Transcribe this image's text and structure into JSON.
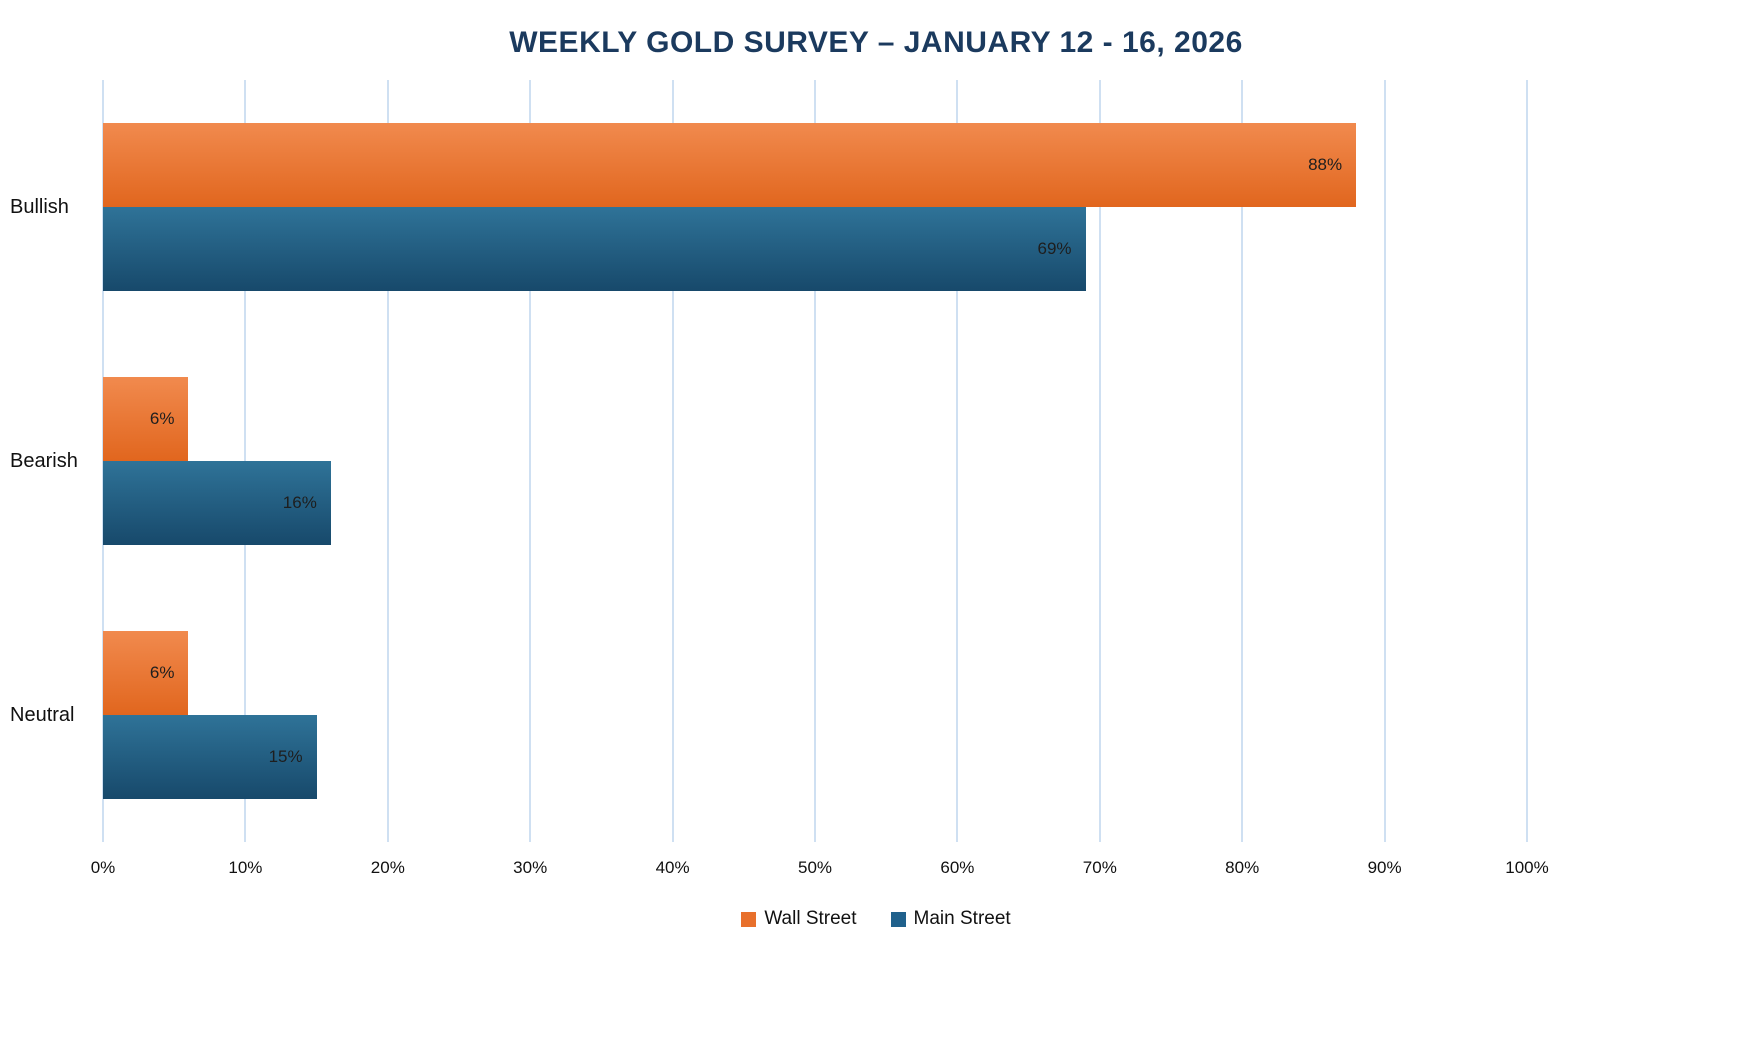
{
  "title": "WEEKLY GOLD SURVEY – JANUARY 12 - 16, 2026",
  "chart_data": {
    "type": "bar",
    "orientation": "horizontal",
    "title": "WEEKLY GOLD SURVEY – JANUARY 12 - 16, 2026",
    "title_color": "#1b3a5e",
    "categories": [
      "Bullish",
      "Bearish",
      "Neutral"
    ],
    "series": [
      {
        "name": "Wall Street",
        "values": [
          88,
          6,
          6
        ],
        "color": "#e8702c",
        "color_top": "#f18a4e",
        "color_bottom": "#e1661e"
      },
      {
        "name": "Main Street",
        "values": [
          69,
          16,
          15
        ],
        "color": "#20618c",
        "color_top": "#2f7398",
        "color_bottom": "#17496b"
      }
    ],
    "data_labels": [
      [
        "88%",
        "6%",
        "6%"
      ],
      [
        "69%",
        "16%",
        "15%"
      ]
    ],
    "xlabel": "",
    "ylabel": "",
    "xlim": [
      0,
      100
    ],
    "x_ticks": [
      "0%",
      "10%",
      "20%",
      "30%",
      "40%",
      "50%",
      "60%",
      "70%",
      "80%",
      "90%",
      "100%"
    ],
    "grid": true,
    "gridline_color": "#cfe0f2",
    "legend_position": "bottom"
  }
}
